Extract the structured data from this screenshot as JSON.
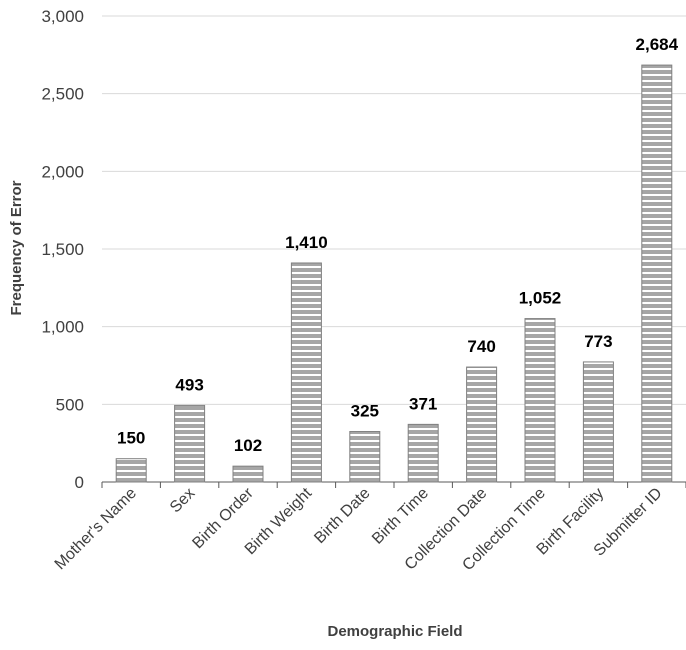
{
  "chart_data": {
    "type": "bar",
    "categories": [
      "Mother's Name",
      "Sex",
      "Birth Order",
      "Birth Weight",
      "Birth Date",
      "Birth Time",
      "Collection Date",
      "Collection Time",
      "Birth Facility",
      "Submitter ID"
    ],
    "values": [
      150,
      493,
      102,
      1410,
      325,
      371,
      740,
      1052,
      773,
      2684
    ],
    "data_labels": [
      "150",
      "493",
      "102",
      "1,410",
      "325",
      "371",
      "740",
      "1,052",
      "773",
      "2,684"
    ],
    "title": "",
    "xlabel": "Demographic Field",
    "ylabel": "Frequency of Error",
    "ylim": [
      0,
      3000
    ],
    "yticks": [
      0,
      500,
      1000,
      1500,
      2000,
      2500,
      3000
    ],
    "ytick_labels": [
      "0",
      "500",
      "1,000",
      "1,500",
      "2,000",
      "2,500",
      "3,000"
    ],
    "grid": true,
    "legend": "none",
    "colors": {
      "bar_fill": "#a6a6a6",
      "bar_stripe": "#ffffff",
      "bar_edge": "#808080",
      "grid": "#d9d9d9",
      "axis": "#595959"
    }
  }
}
